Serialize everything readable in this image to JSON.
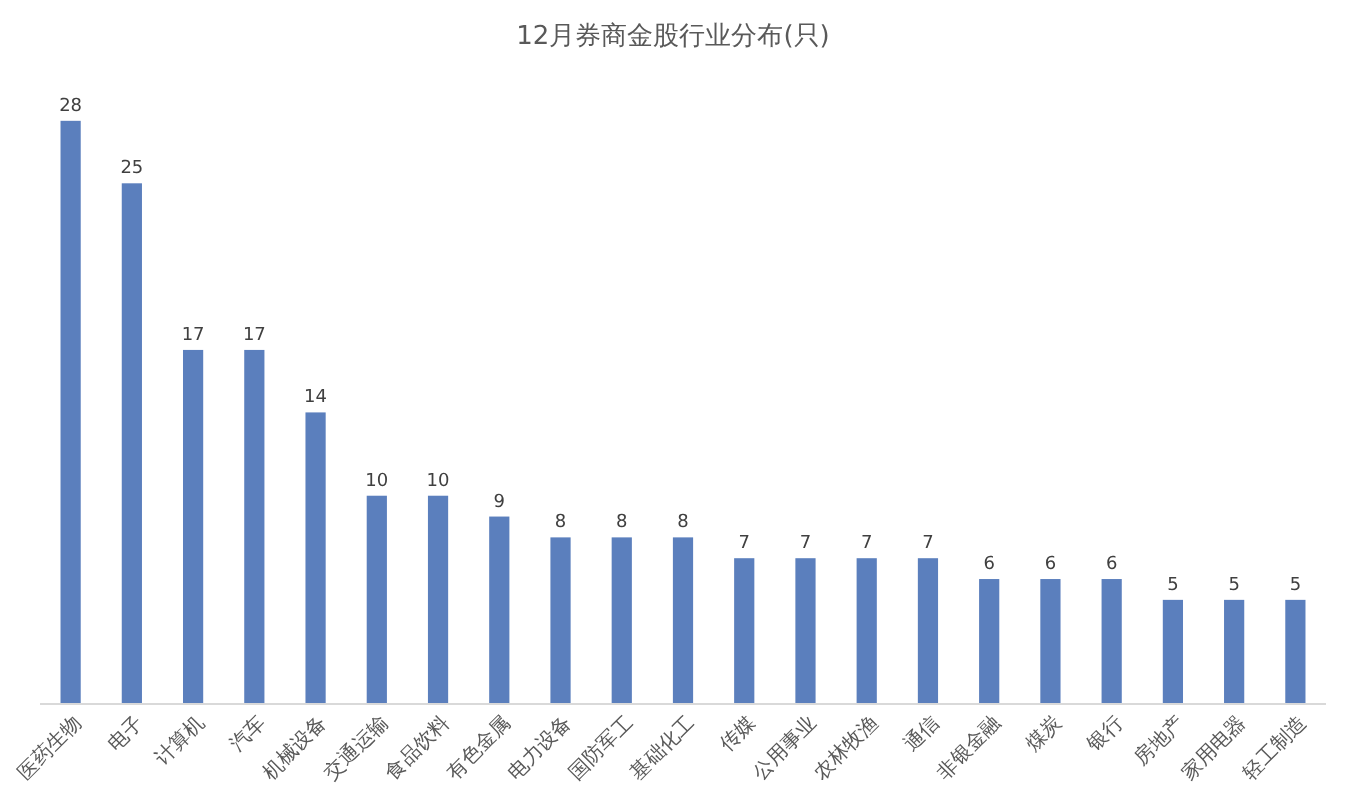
{
  "chart_data": {
    "type": "bar",
    "title": "12月券商金股行业分布(只)",
    "categories": [
      "医药生物",
      "电子",
      "计算机",
      "汽车",
      "机械设备",
      "交通运输",
      "食品饮料",
      "有色金属",
      "电力设备",
      "国防军工",
      "基础化工",
      "传媒",
      "公用事业",
      "农林牧渔",
      "通信",
      "非银金融",
      "煤炭",
      "银行",
      "房地产",
      "家用电器",
      "轻工制造"
    ],
    "values": [
      28,
      25,
      17,
      17,
      14,
      10,
      10,
      9,
      8,
      8,
      8,
      7,
      7,
      7,
      7,
      6,
      6,
      6,
      5,
      5,
      5
    ],
    "color": "#5b7fbd",
    "data_labels": true
  }
}
